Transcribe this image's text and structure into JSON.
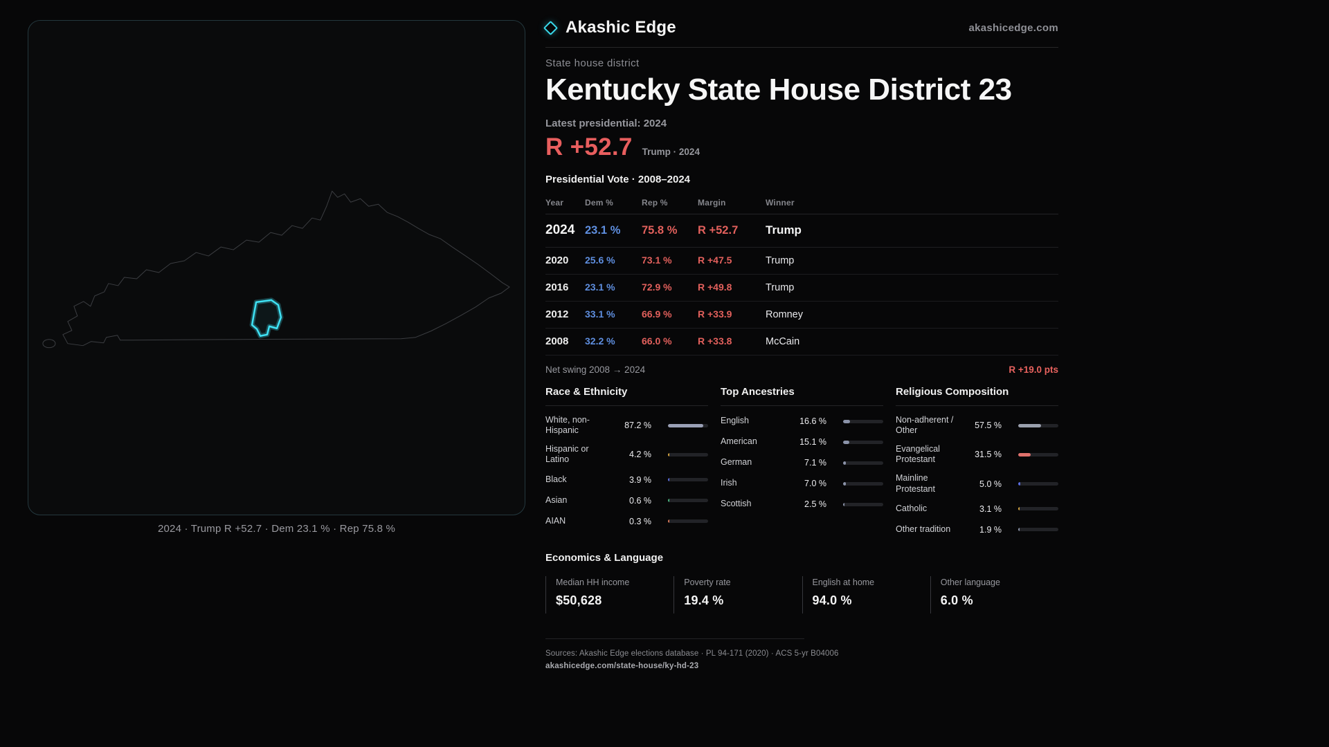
{
  "header": {
    "brand": "Akashic Edge",
    "site": "akashicedge.com"
  },
  "map": {
    "caption": "2024 · Trump R +52.7 · Dem 23.1 % · Rep 75.8 %"
  },
  "profile": {
    "kicker": "State house district",
    "title": "Kentucky State House District 23",
    "latest_label": "Latest presidential: 2024",
    "latest_margin": "R +52.7",
    "latest_detail": "Trump · 2024"
  },
  "vote_table": {
    "title": "Presidential Vote · 2008–2024",
    "columns": [
      "Year",
      "Dem %",
      "Rep %",
      "Margin",
      "Winner"
    ],
    "rows": [
      {
        "year": "2024",
        "dem": "23.1 %",
        "rep": "75.8 %",
        "margin": "R +52.7",
        "winner": "Trump"
      },
      {
        "year": "2020",
        "dem": "25.6 %",
        "rep": "73.1 %",
        "margin": "R +47.5",
        "winner": "Trump"
      },
      {
        "year": "2016",
        "dem": "23.1 %",
        "rep": "72.9 %",
        "margin": "R +49.8",
        "winner": "Trump"
      },
      {
        "year": "2012",
        "dem": "33.1 %",
        "rep": "66.9 %",
        "margin": "R +33.9",
        "winner": "Romney"
      },
      {
        "year": "2008",
        "dem": "32.2 %",
        "rep": "66.0 %",
        "margin": "R +33.8",
        "winner": "McCain"
      }
    ],
    "net_swing_label": "Net swing 2008 → 2024",
    "net_swing_value": "R +19.0 pts"
  },
  "demographics": {
    "race": {
      "title": "Race & Ethnicity",
      "rows": [
        {
          "label": "White, non-Hispanic",
          "value": "87.2 %",
          "pct": 87.2,
          "color": "#9aa0b6"
        },
        {
          "label": "Hispanic or Latino",
          "value": "4.2 %",
          "pct": 4.2,
          "color": "#d6a53f"
        },
        {
          "label": "Black",
          "value": "3.9 %",
          "pct": 3.9,
          "color": "#5a6cdf"
        },
        {
          "label": "Asian",
          "value": "0.6 %",
          "pct": 0.6,
          "color": "#48b57e"
        },
        {
          "label": "AIAN",
          "value": "0.3 %",
          "pct": 0.3,
          "color": "#d97757"
        }
      ]
    },
    "ancestries": {
      "title": "Top Ancestries",
      "rows": [
        {
          "label": "English",
          "value": "16.6 %",
          "pct": 16.6,
          "color": "#8b93a9"
        },
        {
          "label": "American",
          "value": "15.1 %",
          "pct": 15.1,
          "color": "#8b93a9"
        },
        {
          "label": "German",
          "value": "7.1 %",
          "pct": 7.1,
          "color": "#8b93a9"
        },
        {
          "label": "Irish",
          "value": "7.0 %",
          "pct": 7.0,
          "color": "#8b93a9"
        },
        {
          "label": "Scottish",
          "value": "2.5 %",
          "pct": 2.5,
          "color": "#8b93a9"
        }
      ]
    },
    "religion": {
      "title": "Religious Composition",
      "rows": [
        {
          "label": "Non-adherent / Other",
          "value": "57.5 %",
          "pct": 57.5,
          "color": "#9aa0ad"
        },
        {
          "label": "Evangelical Protestant",
          "value": "31.5 %",
          "pct": 31.5,
          "color": "#e0716c"
        },
        {
          "label": "Mainline Protestant",
          "value": "5.0 %",
          "pct": 5.0,
          "color": "#5a6cdf"
        },
        {
          "label": "Catholic",
          "value": "3.1 %",
          "pct": 3.1,
          "color": "#d6a53f"
        },
        {
          "label": "Other tradition",
          "value": "1.9 %",
          "pct": 1.9,
          "color": "#8b93a9"
        }
      ]
    }
  },
  "economics": {
    "title": "Economics & Language",
    "stats": [
      {
        "label": "Median HH income",
        "value": "$50,628"
      },
      {
        "label": "Poverty rate",
        "value": "19.4 %"
      },
      {
        "label": "English at home",
        "value": "94.0 %"
      },
      {
        "label": "Other language",
        "value": "6.0 %"
      }
    ]
  },
  "footer": {
    "sources": "Sources: Akashic Edge elections database · PL 94-171 (2020) · ACS 5-yr B04006",
    "permalink": "akashicedge.com/state-house/ky-hd-23"
  },
  "colors": {
    "accent_cyan": "#3fe2f4",
    "dem_blue": "#5f8fe0",
    "rep_red": "#e2605c"
  }
}
